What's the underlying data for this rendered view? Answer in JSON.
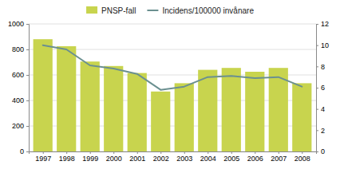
{
  "chart_data": {
    "type": "bar",
    "x": [
      1997,
      1998,
      1999,
      2000,
      2001,
      2002,
      2003,
      2004,
      2005,
      2006,
      2007,
      2008
    ],
    "xlim": [
      1996.4,
      2008.6
    ],
    "xticks": [
      1997,
      1998,
      1999,
      2000,
      2001,
      2002,
      2003,
      2004,
      2005,
      2006,
      2007,
      2008
    ],
    "ylim": [
      0,
      1000
    ],
    "yticks": [
      0,
      200,
      400,
      600,
      800,
      1000
    ],
    "y2lim": [
      0,
      12
    ],
    "y2ticks": [
      0,
      2,
      4,
      6,
      8,
      10,
      12
    ],
    "grid": "y",
    "legend": "upper center",
    "series": [
      {
        "name": "PNSP-fall",
        "type": "bar",
        "color": "#c8d44e",
        "values": [
          880,
          825,
          705,
          670,
          615,
          470,
          535,
          640,
          655,
          625,
          655,
          535
        ]
      },
      {
        "name": "Incidens/100000 invånare",
        "type": "line",
        "color": "#6b9090",
        "axis": "y2",
        "values": [
          10.0,
          9.6,
          8.1,
          7.8,
          7.3,
          5.8,
          6.1,
          7.0,
          7.1,
          6.9,
          7.0,
          6.1
        ]
      }
    ]
  }
}
